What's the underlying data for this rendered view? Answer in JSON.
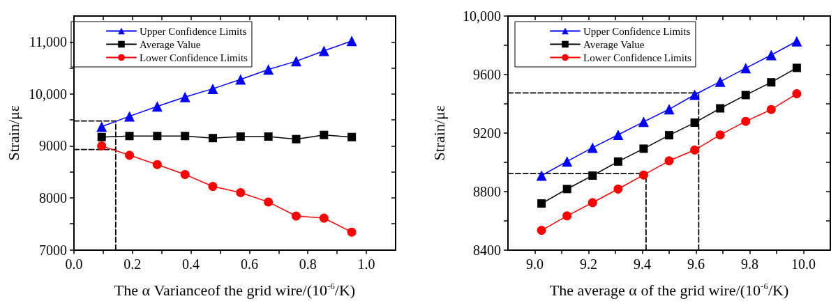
{
  "chart_data": [
    {
      "type": "line",
      "xlabel": "The α Varianceof the grid wire/(10$^{-6}$/K)",
      "ylabel": "Strain/με",
      "legend": "top left",
      "line_style": "solid",
      "x": [
        0.095,
        0.19,
        0.285,
        0.38,
        0.475,
        0.57,
        0.665,
        0.76,
        0.855,
        0.95
      ],
      "series": [
        {
          "name": "Upper Confidence Limits",
          "color": "#0000ff",
          "marker": "triangle",
          "values": [
            9370,
            9570,
            9760,
            9940,
            10100,
            10280,
            10470,
            10630,
            10830,
            11020
          ]
        },
        {
          "name": "Average Value",
          "color": "#000000",
          "marker": "square",
          "values": [
            9170,
            9190,
            9190,
            9190,
            9150,
            9180,
            9180,
            9130,
            9210,
            9170
          ]
        },
        {
          "name": "Lower Confidence Limits",
          "color": "#ff0000",
          "marker": "circle",
          "values": [
            9000,
            8820,
            8640,
            8450,
            8220,
            8100,
            7920,
            7650,
            7610,
            7340
          ]
        },
        {
          "color": "#000000",
          "marker": "none",
          "line_style": "dashed",
          "x": [
            0,
            0.143
          ],
          "values": [
            9480,
            9480
          ]
        },
        {
          "color": "#000000",
          "marker": "none",
          "line_style": "dashed",
          "x": [
            0,
            0.143
          ],
          "values": [
            8930,
            8930
          ]
        },
        {
          "color": "#000000",
          "marker": "none",
          "line_style": "dashed",
          "x": [
            0.143,
            0.143
          ],
          "values": [
            7000,
            9480
          ]
        }
      ],
      "xlim": [
        0,
        1.1
      ],
      "xticks": [
        {
          "value": 0,
          "label": "0.0"
        },
        {
          "value": 0.1,
          "label": null
        },
        0.2,
        {
          "value": 0.3,
          "label": null
        },
        0.4,
        {
          "value": 0.5,
          "label": null
        },
        0.6,
        {
          "value": 0.7,
          "label": null
        },
        0.8,
        {
          "value": 0.9,
          "label": null
        },
        {
          "value": 1,
          "label": "1.0"
        }
      ],
      "ylim": [
        7000,
        11500
      ],
      "yticks": [
        7000,
        {
          "value": 7500,
          "label": null
        },
        8000,
        {
          "value": 8500,
          "label": null
        },
        9000,
        {
          "value": 9500,
          "label": null
        },
        {
          "value": 10000,
          "label": "10,000"
        },
        {
          "value": 10500,
          "label": null
        },
        {
          "value": 11000,
          "label": "11,000"
        }
      ],
      "grid": false
    },
    {
      "type": "line",
      "xlabel": "The average α of the grid wire/(10$^{-6}$/K)",
      "ylabel": "Strain/με",
      "legend": "top left",
      "line_style": "solid",
      "x": [
        9.025,
        9.12,
        9.215,
        9.31,
        9.405,
        9.5,
        9.595,
        9.69,
        9.785,
        9.88,
        9.975
      ],
      "series": [
        {
          "name": "Upper Confidence Limits",
          "color": "#0000ff",
          "marker": "triangle",
          "values": [
            8908,
            9005,
            9099,
            9187,
            9276,
            9362,
            9461,
            9551,
            9643,
            9733,
            9827
          ]
        },
        {
          "name": "Average Value",
          "color": "#000000",
          "marker": "square",
          "values": [
            8717,
            8816,
            8908,
            9004,
            9092,
            9184,
            9270,
            9368,
            9459,
            9546,
            9645
          ]
        },
        {
          "name": "Lower Confidence Limits",
          "color": "#ff0000",
          "marker": "circle",
          "values": [
            8533,
            8632,
            8723,
            8816,
            8912,
            9009,
            9083,
            9186,
            9279,
            9360,
            9468
          ]
        },
        {
          "color": "#000000",
          "marker": "none",
          "line_style": "dashed",
          "x": [
            8.9,
            9.61
          ],
          "values": [
            9474,
            9474
          ]
        },
        {
          "color": "#000000",
          "marker": "none",
          "line_style": "dashed",
          "x": [
            9.61,
            9.61
          ],
          "values": [
            8400,
            9474
          ]
        },
        {
          "color": "#000000",
          "marker": "none",
          "line_style": "dashed",
          "x": [
            8.9,
            9.414
          ],
          "values": [
            8923,
            8923
          ]
        },
        {
          "color": "#000000",
          "marker": "none",
          "line_style": "dashed",
          "x": [
            9.414,
            9.414
          ],
          "values": [
            8400,
            8923
          ]
        }
      ],
      "xlim": [
        8.9,
        10.1
      ],
      "xticks": [
        {
          "value": 9,
          "label": "9.0"
        },
        {
          "value": 9.1,
          "label": null
        },
        9.2,
        {
          "value": 9.3,
          "label": null
        },
        9.4,
        {
          "value": 9.5,
          "label": null
        },
        9.6,
        {
          "value": 9.7,
          "label": null
        },
        9.8,
        {
          "value": 9.9,
          "label": null
        },
        {
          "value": 10,
          "label": "10.0"
        }
      ],
      "ylim": [
        8400,
        10000
      ],
      "yticks": [
        8400,
        {
          "value": 8600,
          "label": null
        },
        8800,
        {
          "value": 9000,
          "label": null
        },
        9200,
        {
          "value": 9400,
          "label": null
        },
        9600,
        {
          "value": 9800,
          "label": null
        },
        {
          "value": 10000,
          "label": "10,000"
        }
      ],
      "grid": false
    }
  ]
}
